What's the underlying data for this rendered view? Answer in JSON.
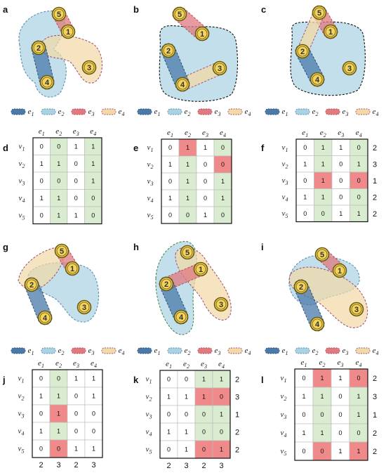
{
  "colors": {
    "e1": "#4a7aaa",
    "e2": "#a9d2e3",
    "e3": "#e07a80",
    "e4": "#f2d9a6",
    "node_fill": "#f3d35b",
    "node_stroke": "#6a5a10",
    "cell_green": "#d9ecd0",
    "cell_red": "#f08a8a",
    "deg_red": "#e0443a",
    "grid": "#b9b9b9",
    "outline": "#111111"
  },
  "icons": {
    "node": "circle-node-icon",
    "legend_swatch": "dashed-blob-swatch-icon"
  },
  "panels": {
    "a": {
      "label": "a"
    },
    "b": {
      "label": "b"
    },
    "c": {
      "label": "c"
    },
    "d": {
      "label": "d"
    },
    "e": {
      "label": "e"
    },
    "f": {
      "label": "f"
    },
    "g": {
      "label": "g"
    },
    "h": {
      "label": "h"
    },
    "i": {
      "label": "i"
    },
    "j": {
      "label": "j"
    },
    "k": {
      "label": "k"
    },
    "l": {
      "label": "l"
    }
  },
  "legend": {
    "items": [
      {
        "sub": "1"
      },
      {
        "sub": "2"
      },
      {
        "sub": "3"
      },
      {
        "sub": "4"
      }
    ]
  },
  "hypergraphs": {
    "nodes": [
      "1",
      "2",
      "3",
      "4",
      "5"
    ]
  },
  "matrices": {
    "col_labels": [
      "1",
      "2",
      "3",
      "4"
    ],
    "row_labels": [
      "1",
      "2",
      "3",
      "4",
      "5"
    ],
    "d": {
      "values": [
        [
          0,
          0,
          1,
          1
        ],
        [
          1,
          1,
          0,
          1
        ],
        [
          0,
          0,
          0,
          1
        ],
        [
          1,
          1,
          0,
          0
        ],
        [
          0,
          1,
          1,
          0
        ]
      ],
      "green_cols": [
        1,
        3
      ],
      "red_cells": [],
      "row_degrees": [],
      "col_degrees": [],
      "red_row_degrees": []
    },
    "e": {
      "values": [
        [
          0,
          1,
          1,
          0
        ],
        [
          1,
          1,
          0,
          0
        ],
        [
          0,
          1,
          0,
          1
        ],
        [
          1,
          1,
          0,
          1
        ],
        [
          0,
          0,
          1,
          0
        ]
      ],
      "green_cols": [
        1,
        3
      ],
      "red_cells": [
        [
          0,
          1
        ],
        [
          1,
          3
        ]
      ],
      "row_degrees": [],
      "col_degrees": [],
      "red_row_degrees": []
    },
    "f": {
      "values": [
        [
          0,
          1,
          1,
          0
        ],
        [
          1,
          1,
          0,
          1
        ],
        [
          0,
          1,
          0,
          0
        ],
        [
          1,
          1,
          0,
          0
        ],
        [
          0,
          0,
          1,
          1
        ]
      ],
      "green_cols": [
        1,
        3
      ],
      "red_cells": [
        [
          2,
          1
        ],
        [
          2,
          3
        ]
      ],
      "row_degrees": [
        "2",
        "3",
        "1",
        "2",
        "2"
      ],
      "col_degrees": [],
      "red_row_degrees": []
    },
    "j": {
      "values": [
        [
          0,
          0,
          1,
          1
        ],
        [
          1,
          1,
          0,
          1
        ],
        [
          0,
          1,
          0,
          0
        ],
        [
          1,
          1,
          0,
          0
        ],
        [
          0,
          0,
          1,
          1
        ]
      ],
      "green_cols": [
        1
      ],
      "red_cells": [
        [
          2,
          1
        ],
        [
          4,
          1
        ]
      ],
      "row_degrees": [],
      "col_degrees": [
        "2",
        "3",
        "2",
        "3"
      ],
      "red_row_degrees": []
    },
    "k": {
      "values": [
        [
          0,
          0,
          1,
          1
        ],
        [
          1,
          1,
          1,
          0
        ],
        [
          0,
          0,
          0,
          1
        ],
        [
          1,
          1,
          0,
          0
        ],
        [
          0,
          1,
          0,
          1
        ]
      ],
      "green_cols": [
        2,
        3
      ],
      "red_cells": [
        [
          1,
          2
        ],
        [
          1,
          3
        ],
        [
          4,
          2
        ],
        [
          4,
          3
        ]
      ],
      "row_degrees": [
        "2",
        "3",
        "1",
        "2",
        "2"
      ],
      "col_degrees": [
        "2",
        "3",
        "2",
        "3"
      ],
      "red_row_degrees": []
    },
    "l": {
      "values": [
        [
          0,
          1,
          1,
          0
        ],
        [
          1,
          1,
          0,
          1
        ],
        [
          0,
          0,
          0,
          1
        ],
        [
          1,
          1,
          0,
          0
        ],
        [
          0,
          0,
          1,
          1
        ]
      ],
      "green_cols": [
        1,
        3
      ],
      "red_cells": [
        [
          0,
          1
        ],
        [
          0,
          3
        ],
        [
          4,
          1
        ],
        [
          4,
          3
        ]
      ],
      "row_degrees": [
        "2",
        "3",
        "1",
        "2",
        "2"
      ],
      "col_degrees": [],
      "red_row_degrees": [
        0,
        4
      ]
    }
  }
}
